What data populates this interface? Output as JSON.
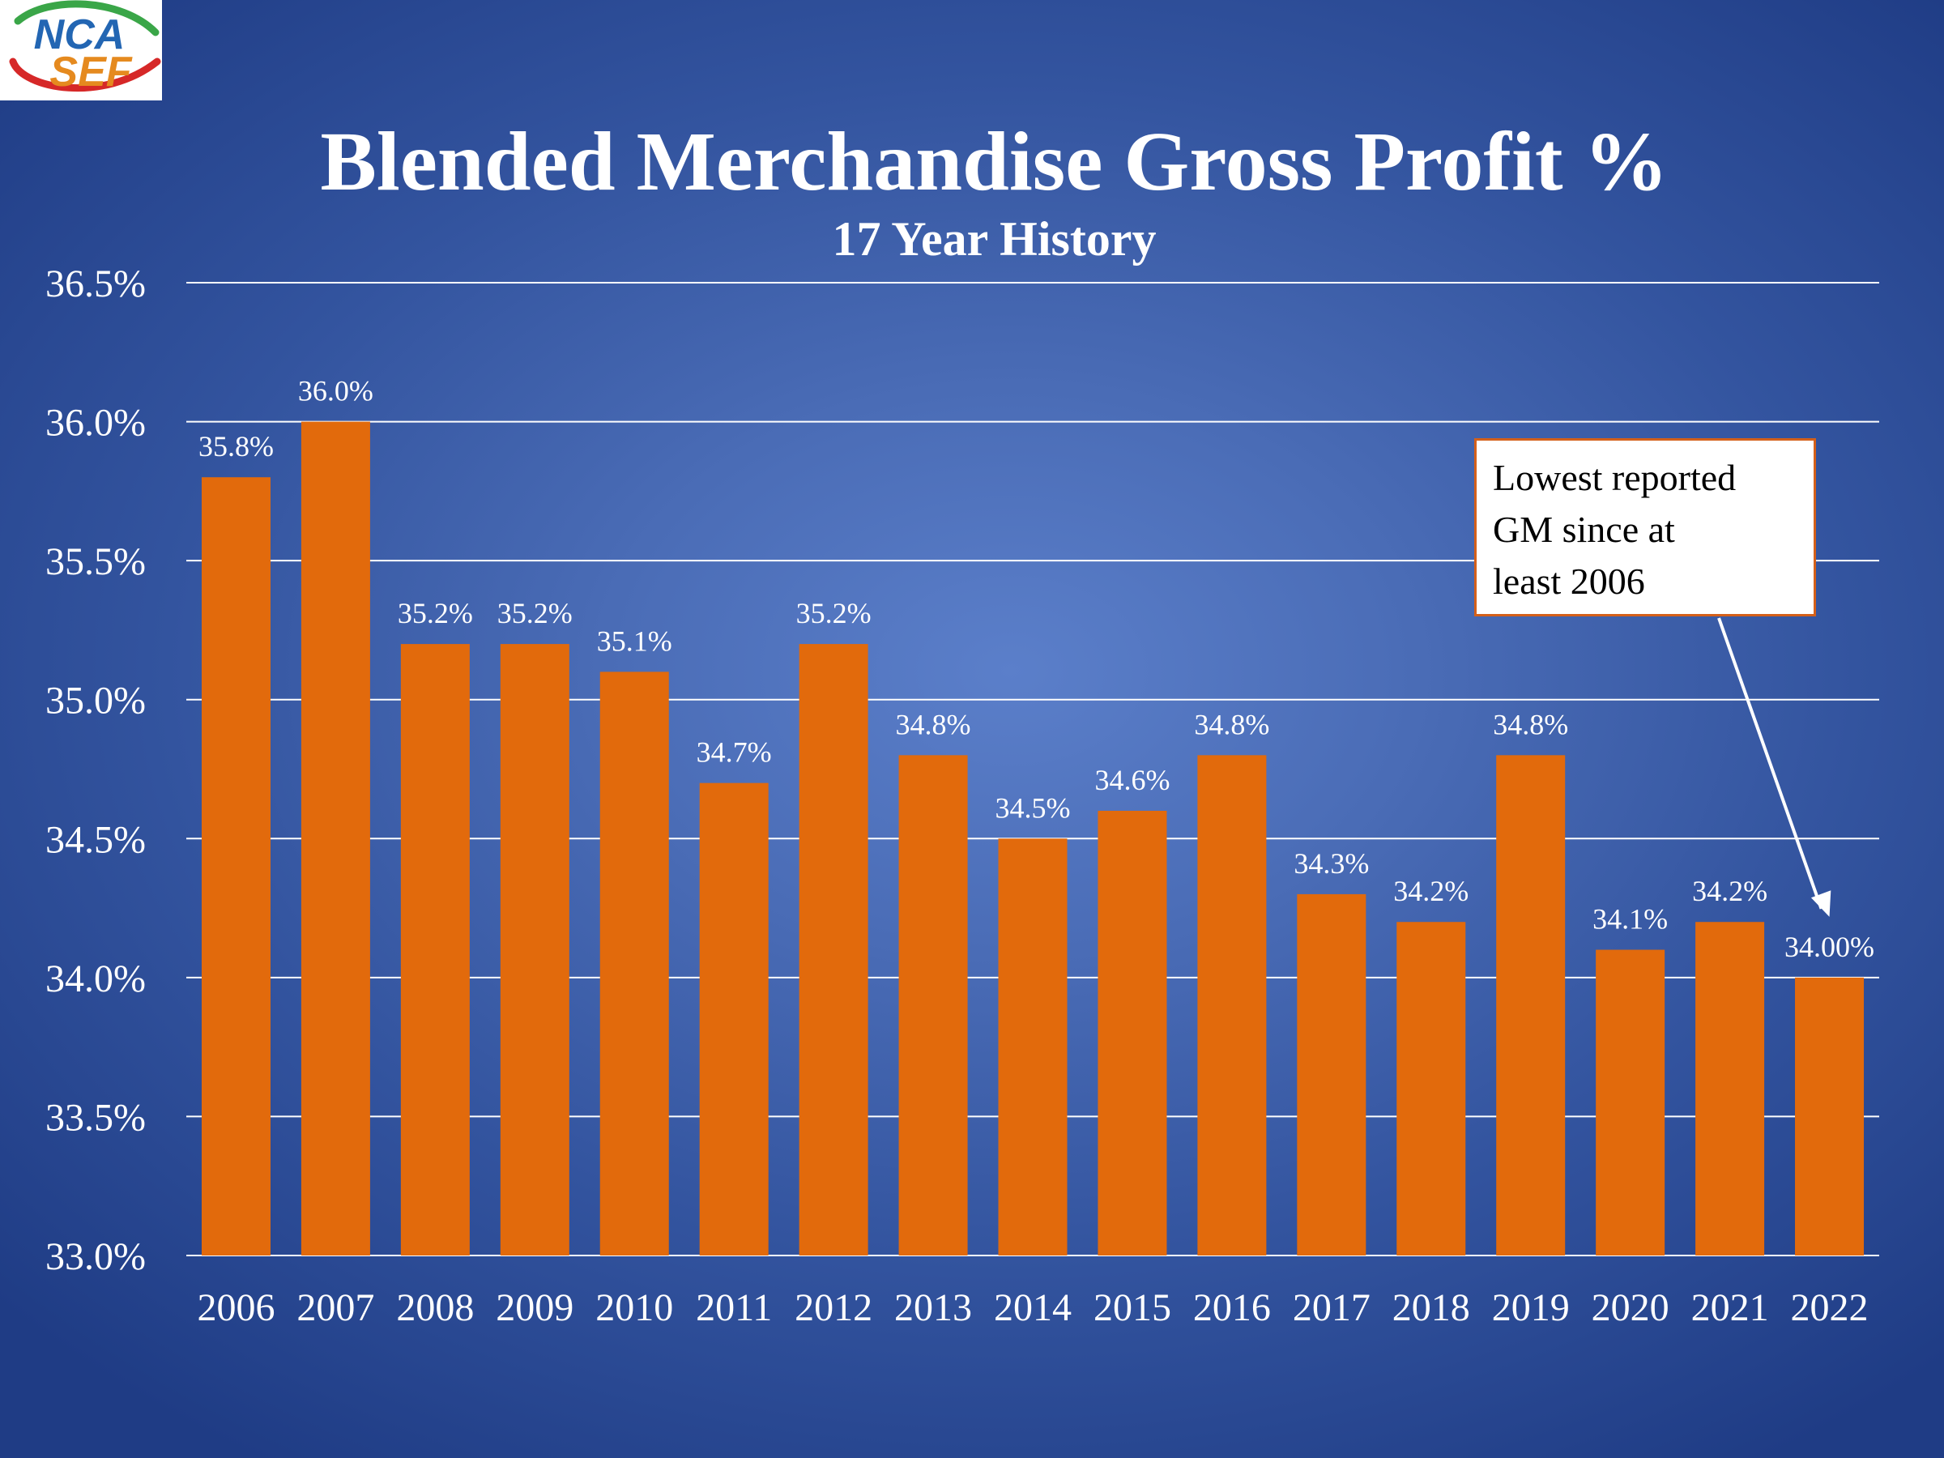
{
  "logo": {
    "line1": "NCA",
    "line2": "SEF"
  },
  "chart_data": {
    "type": "bar",
    "title": "Blended Merchandise Gross Profit %",
    "subtitle": "17 Year History",
    "categories": [
      "2006",
      "2007",
      "2008",
      "2009",
      "2010",
      "2011",
      "2012",
      "2013",
      "2014",
      "2015",
      "2016",
      "2017",
      "2018",
      "2019",
      "2020",
      "2021",
      "2022"
    ],
    "values": [
      35.8,
      36.0,
      35.2,
      35.2,
      35.1,
      34.7,
      35.2,
      34.8,
      34.5,
      34.6,
      34.8,
      34.3,
      34.2,
      34.8,
      34.1,
      34.2,
      34.0
    ],
    "data_labels": [
      "35.8%",
      "36.0%",
      "35.2%",
      "35.2%",
      "35.1%",
      "34.7%",
      "35.2%",
      "34.8%",
      "34.5%",
      "34.6%",
      "34.8%",
      "34.3%",
      "34.2%",
      "34.8%",
      "34.1%",
      "34.2%",
      "34.00%"
    ],
    "ylim": [
      33.0,
      36.5
    ],
    "yticks": [
      "33.0%",
      "33.5%",
      "34.0%",
      "34.5%",
      "35.0%",
      "35.5%",
      "36.0%",
      "36.5%"
    ],
    "xlabel": "",
    "ylabel": "",
    "grid": true,
    "bar_color": "#e26a0c",
    "annotation": {
      "lines": [
        "Lowest reported",
        "GM since at",
        "least 2006"
      ],
      "target_category": "2022"
    }
  }
}
